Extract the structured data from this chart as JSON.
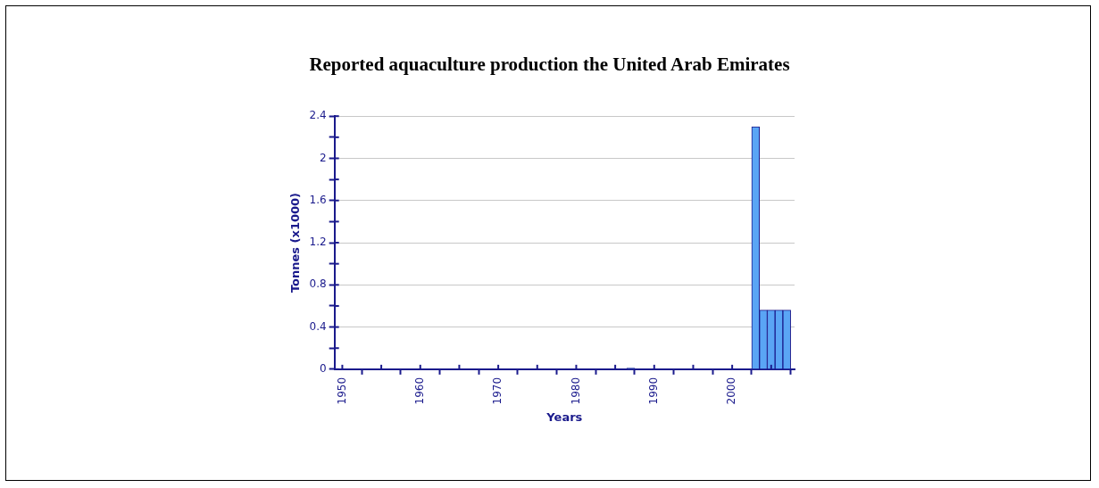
{
  "chart_data": {
    "type": "bar",
    "title": "Reported aquaculture production the United Arab Emirates",
    "xlabel": "Years",
    "ylabel": "Tonnes (x1000)",
    "x": [
      1987,
      2003,
      2004,
      2005,
      2006,
      2007
    ],
    "values": [
      0.01,
      2.3,
      0.56,
      0.56,
      0.56,
      0.56
    ],
    "color": "#5aa5f5",
    "xlim": [
      1949,
      2008
    ],
    "xticks": [
      1950,
      {
        "value": 1955,
        "label": null
      },
      1960,
      {
        "value": 1965,
        "label": null
      },
      1970,
      {
        "value": 1975,
        "label": null
      },
      1980,
      {
        "value": 1985,
        "label": null
      },
      1990,
      {
        "value": 1995,
        "label": null
      },
      2000,
      {
        "value": 2005,
        "label": null
      }
    ],
    "ylim": [
      0,
      2.4
    ],
    "yticks": [
      0,
      {
        "value": 0.2,
        "label": null
      },
      0.4,
      {
        "value": 0.6,
        "label": null
      },
      0.8,
      {
        "value": 1,
        "label": null
      },
      1.2,
      {
        "value": 1.4,
        "label": null
      },
      1.6,
      {
        "value": 1.8,
        "label": null
      },
      2,
      {
        "value": 2.2,
        "label": null
      },
      2.4
    ],
    "grid": "y",
    "legend": false
  }
}
